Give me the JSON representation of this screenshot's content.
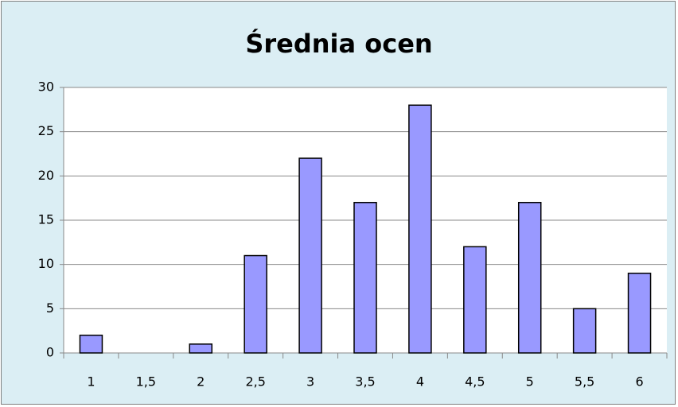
{
  "chart_data": {
    "type": "bar",
    "title": "Średnia ocen",
    "categories": [
      "1",
      "1,5",
      "2",
      "2,5",
      "3",
      "3,5",
      "4",
      "4,5",
      "5",
      "5,5",
      "6"
    ],
    "values": [
      2,
      0,
      1,
      11,
      22,
      17,
      28,
      12,
      17,
      5,
      9
    ],
    "color": "#9999ff",
    "ylim": [
      0,
      30
    ],
    "yticks": [
      0,
      5,
      10,
      15,
      20,
      25,
      30
    ],
    "grid": true
  }
}
